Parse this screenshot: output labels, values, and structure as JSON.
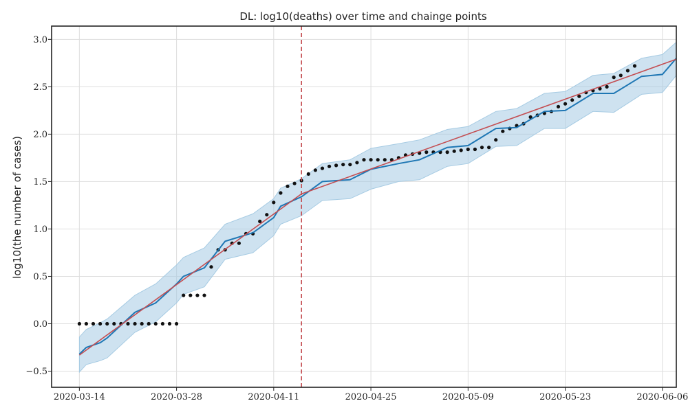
{
  "chart_data": {
    "type": "line",
    "title": "DL: log10(deaths) over time and chainge points",
    "xlabel": "",
    "ylabel": "log10(the number of cases)",
    "x_start": "2020-03-14",
    "x_ticks": [
      "2020-03-14",
      "2020-03-28",
      "2020-04-11",
      "2020-04-25",
      "2020-05-09",
      "2020-05-23",
      "2020-06-06"
    ],
    "y_ticks": [
      "3.0",
      "2.5",
      "2.0",
      "1.5",
      "1.0",
      "0.5",
      "0.0",
      "-0.5"
    ],
    "xlim": [
      "2020-03-10",
      "2020-06-08"
    ],
    "ylim": [
      -0.67,
      3.14
    ],
    "grid": true,
    "change_point": "2020-04-15",
    "colors": {
      "observed": "#111111",
      "fitted": "#1f77b4",
      "band": "#a6cbe3",
      "trend": "#c44e52",
      "change_point": "#c44e52"
    },
    "series": [
      {
        "role": "observed",
        "style": "points",
        "values": [
          0,
          0,
          0,
          0,
          0,
          0,
          0,
          0,
          0,
          0,
          0,
          0,
          0,
          0,
          0,
          0.3,
          0.3,
          0.3,
          0.3,
          0.6,
          0.78,
          0.78,
          0.85,
          0.85,
          0.95,
          0.95,
          1.08,
          1.15,
          1.28,
          1.38,
          1.45,
          1.48,
          1.51,
          1.58,
          1.62,
          1.64,
          1.66,
          1.67,
          1.68,
          1.68,
          1.7,
          1.73,
          1.73,
          1.73,
          1.73,
          1.73,
          1.75,
          1.78,
          1.79,
          1.8,
          1.81,
          1.81,
          1.81,
          1.81,
          1.82,
          1.83,
          1.84,
          1.84,
          1.86,
          1.86,
          1.94,
          2.03,
          2.06,
          2.09,
          2.11,
          2.18,
          2.2,
          2.22,
          2.24,
          2.29,
          2.32,
          2.36,
          2.4,
          2.44,
          2.46,
          2.48,
          2.5,
          2.6,
          2.62,
          2.67,
          2.72
        ]
      },
      {
        "role": "fitted",
        "style": "line",
        "x": [
          "2020-03-14",
          "2020-03-15",
          "2020-03-17",
          "2020-03-18",
          "2020-03-22",
          "2020-03-25",
          "2020-03-28",
          "2020-03-29",
          "2020-04-01",
          "2020-04-04",
          "2020-04-08",
          "2020-04-11",
          "2020-04-12",
          "2020-04-15",
          "2020-04-18",
          "2020-04-22",
          "2020-04-25",
          "2020-04-29",
          "2020-05-02",
          "2020-05-06",
          "2020-05-09",
          "2020-05-13",
          "2020-05-16",
          "2020-05-20",
          "2020-05-23",
          "2020-05-27",
          "2020-05-30",
          "2020-06-03",
          "2020-06-06",
          "2020-06-08"
        ],
        "values": [
          -0.32,
          -0.25,
          -0.2,
          -0.15,
          0.12,
          0.22,
          0.42,
          0.5,
          0.59,
          0.87,
          0.96,
          1.12,
          1.24,
          1.34,
          1.5,
          1.52,
          1.63,
          1.69,
          1.73,
          1.86,
          1.88,
          2.06,
          2.07,
          2.24,
          2.25,
          2.43,
          2.43,
          2.61,
          2.63,
          2.8
        ]
      },
      {
        "role": "upper",
        "style": "band",
        "x": [
          "2020-03-14",
          "2020-03-15",
          "2020-03-17",
          "2020-03-18",
          "2020-03-22",
          "2020-03-25",
          "2020-03-28",
          "2020-03-29",
          "2020-04-01",
          "2020-04-04",
          "2020-04-08",
          "2020-04-11",
          "2020-04-12",
          "2020-04-15",
          "2020-04-18",
          "2020-04-22",
          "2020-04-25",
          "2020-04-29",
          "2020-05-02",
          "2020-05-06",
          "2020-05-09",
          "2020-05-13",
          "2020-05-16",
          "2020-05-20",
          "2020-05-23",
          "2020-05-27",
          "2020-05-30",
          "2020-06-03",
          "2020-06-06",
          "2020-06-08"
        ],
        "values": [
          -0.14,
          -0.06,
          0.01,
          0.05,
          0.3,
          0.42,
          0.62,
          0.7,
          0.8,
          1.05,
          1.16,
          1.32,
          1.43,
          1.53,
          1.69,
          1.73,
          1.85,
          1.9,
          1.94,
          2.05,
          2.08,
          2.24,
          2.27,
          2.43,
          2.45,
          2.62,
          2.64,
          2.8,
          2.84,
          2.97
        ]
      },
      {
        "role": "lower",
        "style": "band",
        "x": [
          "2020-03-14",
          "2020-03-15",
          "2020-03-17",
          "2020-03-18",
          "2020-03-22",
          "2020-03-25",
          "2020-03-28",
          "2020-03-29",
          "2020-04-01",
          "2020-04-04",
          "2020-04-08",
          "2020-04-11",
          "2020-04-12",
          "2020-04-15",
          "2020-04-18",
          "2020-04-22",
          "2020-04-25",
          "2020-04-29",
          "2020-05-02",
          "2020-05-06",
          "2020-05-09",
          "2020-05-13",
          "2020-05-16",
          "2020-05-20",
          "2020-05-23",
          "2020-05-27",
          "2020-05-30",
          "2020-06-03",
          "2020-06-06",
          "2020-06-08"
        ],
        "values": [
          -0.51,
          -0.43,
          -0.39,
          -0.36,
          -0.09,
          0.02,
          0.22,
          0.31,
          0.39,
          0.68,
          0.75,
          0.93,
          1.05,
          1.14,
          1.3,
          1.32,
          1.42,
          1.5,
          1.52,
          1.66,
          1.69,
          1.87,
          1.88,
          2.06,
          2.06,
          2.24,
          2.23,
          2.42,
          2.44,
          2.62
        ]
      },
      {
        "role": "trend",
        "style": "line",
        "x": [
          "2020-03-14",
          "2020-04-15",
          "2020-06-08"
        ],
        "values": [
          -0.33,
          1.37,
          2.79
        ]
      }
    ]
  }
}
